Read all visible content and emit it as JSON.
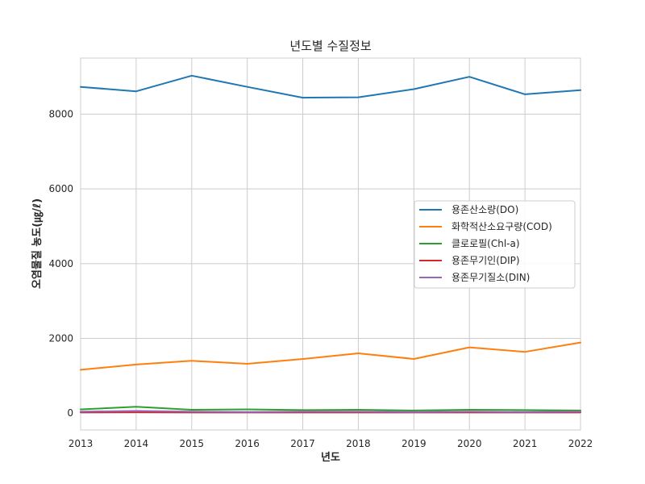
{
  "chart_data": {
    "type": "line",
    "title": "년도별 수질정보",
    "xlabel": "년도",
    "ylabel": "오염물질 농도(㎍/ℓ)",
    "x": [
      2013,
      2014,
      2015,
      2016,
      2017,
      2018,
      2019,
      2020,
      2021,
      2022
    ],
    "xlim": [
      2013,
      2022
    ],
    "ylim": [
      -450,
      9500
    ],
    "yticks": [
      0,
      2000,
      4000,
      6000,
      8000
    ],
    "grid": true,
    "legend_position": "center-right",
    "series": [
      {
        "name": "용존산소량(DO)",
        "color": "#1f77b4",
        "values": [
          8730,
          8610,
          9030,
          8730,
          8440,
          8450,
          8670,
          9000,
          8530,
          8640
        ]
      },
      {
        "name": "화학적산소요구량(COD)",
        "color": "#ff7f0e",
        "values": [
          1160,
          1300,
          1400,
          1320,
          1450,
          1600,
          1450,
          1760,
          1640,
          1890
        ]
      },
      {
        "name": "클로로필(Chl-a)",
        "color": "#2ca02c",
        "values": [
          100,
          170,
          90,
          100,
          80,
          90,
          70,
          90,
          80,
          70
        ]
      },
      {
        "name": "용존무기인(DIP)",
        "color": "#d62728",
        "values": [
          20,
          25,
          20,
          20,
          20,
          20,
          20,
          20,
          20,
          20
        ]
      },
      {
        "name": "용존무기질소(DIN)",
        "color": "#9467bd",
        "values": [
          40,
          60,
          40,
          30,
          40,
          40,
          30,
          40,
          30,
          40
        ]
      }
    ]
  }
}
